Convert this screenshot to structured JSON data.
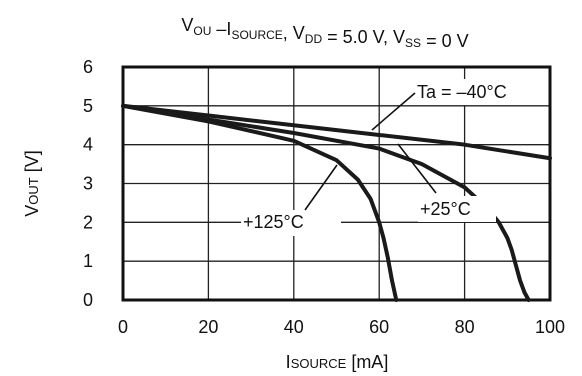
{
  "chart_data": {
    "type": "line",
    "title": {
      "parts": [
        {
          "t": "V",
          "sub": "OU"
        },
        {
          "t": " –I",
          "sub": "SOURCE"
        },
        {
          "t": ", V",
          "sub": "DD"
        },
        {
          "t": " = 5.0 V, V",
          "sub": "SS"
        },
        {
          "t": " = 0 V",
          "sub": ""
        }
      ]
    },
    "xlabel": {
      "main": "I",
      "sub": "SOURCE",
      "unit": " [mA]"
    },
    "ylabel": {
      "main": "V",
      "sub": "OUT",
      "unit": " [V]"
    },
    "xlim": [
      0,
      100
    ],
    "ylim": [
      0,
      6
    ],
    "xticks": [
      "0",
      "20",
      "40",
      "60",
      "80",
      "100"
    ],
    "yticks": [
      "0",
      "1",
      "2",
      "3",
      "4",
      "5",
      "6"
    ],
    "grid": true,
    "legend": "none",
    "series": [
      {
        "name": "Ta = –40°C",
        "x": [
          0,
          20,
          40,
          60,
          80,
          100
        ],
        "y": [
          5.0,
          4.75,
          4.5,
          4.25,
          4.0,
          3.65
        ]
      },
      {
        "name": "+25°C",
        "x": [
          0,
          20,
          40,
          60,
          70,
          80,
          85,
          88,
          90,
          91,
          92,
          93,
          94,
          95
        ],
        "y": [
          5.0,
          4.65,
          4.3,
          3.9,
          3.5,
          2.9,
          2.4,
          2.0,
          1.6,
          1.3,
          0.9,
          0.5,
          0.2,
          0.0
        ]
      },
      {
        "name": "+125°C",
        "x": [
          0,
          20,
          40,
          50,
          55,
          58,
          60,
          61,
          62,
          63,
          64
        ],
        "y": [
          5.0,
          4.6,
          4.1,
          3.6,
          3.1,
          2.6,
          2.0,
          1.6,
          1.1,
          0.5,
          0.0
        ]
      }
    ],
    "annotations": [
      {
        "text": "Ta = –40°C",
        "series": 0
      },
      {
        "text": "+25°C",
        "series": 1
      },
      {
        "text": "+125°C",
        "series": 2
      }
    ]
  }
}
